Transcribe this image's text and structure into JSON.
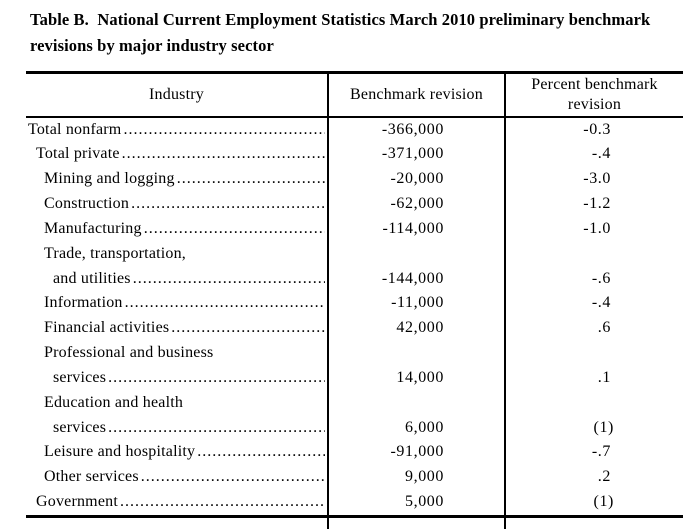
{
  "title": {
    "line1": "Table B.  National Current Employment Statistics March 2010 preliminary benchmark",
    "line2": "revisions by major industry sector"
  },
  "table": {
    "columns": [
      "Industry",
      "Benchmark revision",
      "Percent benchmark revision"
    ],
    "footnote_marker": "(1)",
    "text_color": "#000000",
    "rows": [
      {
        "label": "Total nonfarm",
        "indent": 0,
        "leader": true,
        "value": "-366,000",
        "pct": "-0.3"
      },
      {
        "label": "Total private",
        "indent": 1,
        "leader": true,
        "value": "-371,000",
        "pct": "-.4"
      },
      {
        "label": "Mining and logging",
        "indent": 2,
        "leader": true,
        "value": "-20,000",
        "pct": "-3.0"
      },
      {
        "label": "Construction",
        "indent": 2,
        "leader": true,
        "value": "-62,000",
        "pct": "-1.2"
      },
      {
        "label": "Manufacturing",
        "indent": 2,
        "leader": true,
        "value": "-114,000",
        "pct": "-1.0"
      },
      {
        "label": "Trade, transportation,",
        "indent": 2,
        "leader": false,
        "value": "",
        "pct": ""
      },
      {
        "label": "and utilities",
        "indent": 3,
        "leader": true,
        "value": "-144,000",
        "pct": "-.6"
      },
      {
        "label": "Information",
        "indent": 2,
        "leader": true,
        "value": "-11,000",
        "pct": "-.4"
      },
      {
        "label": "Financial activities",
        "indent": 2,
        "leader": true,
        "value": "42,000",
        "pct": ".6"
      },
      {
        "label": "Professional and business",
        "indent": 2,
        "leader": false,
        "value": "",
        "pct": ""
      },
      {
        "label": "services",
        "indent": 3,
        "leader": true,
        "value": "14,000",
        "pct": ".1"
      },
      {
        "label": "Education and health",
        "indent": 2,
        "leader": false,
        "value": "",
        "pct": ""
      },
      {
        "label": "services",
        "indent": 3,
        "leader": true,
        "value": "6,000",
        "pct": "(1)"
      },
      {
        "label": "Leisure and hospitality",
        "indent": 2,
        "leader": true,
        "value": "-91,000",
        "pct": "-.7"
      },
      {
        "label": "Other services",
        "indent": 2,
        "leader": true,
        "value": "9,000",
        "pct": ".2"
      },
      {
        "label": "Government",
        "indent": 1,
        "leader": true,
        "value": "5,000",
        "pct": "(1)"
      }
    ]
  }
}
